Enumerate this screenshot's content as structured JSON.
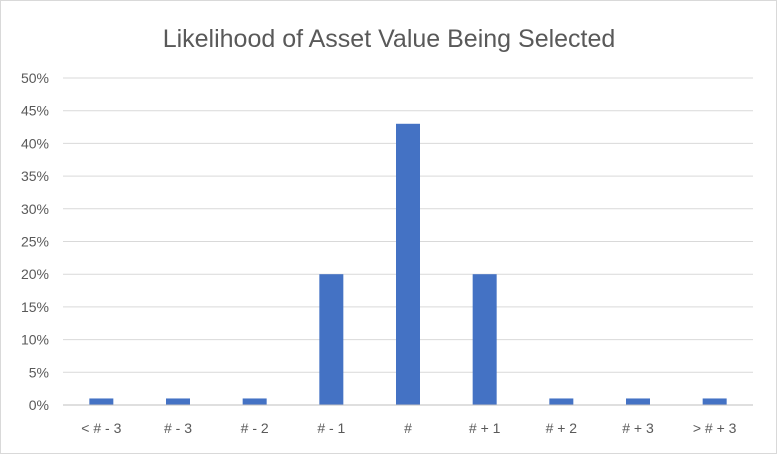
{
  "chart_data": {
    "type": "bar",
    "title": "Likelihood of Asset Value Being Selected",
    "xlabel": "",
    "ylabel": "",
    "categories": [
      "< # - 3",
      "# - 3",
      "# - 2",
      "# - 1",
      "#",
      "# + 1",
      "# + 2",
      "# + 3",
      "> # + 3"
    ],
    "values": [
      1,
      1,
      1,
      20,
      43,
      20,
      1,
      1,
      1
    ],
    "value_unit": "%",
    "ylim": [
      0,
      50
    ],
    "y_ticks": [
      "0%",
      "5%",
      "10%",
      "15%",
      "20%",
      "25%",
      "30%",
      "35%",
      "40%",
      "45%",
      "50%"
    ],
    "grid": true,
    "legend": "none",
    "bar_color": "#4472c4"
  }
}
